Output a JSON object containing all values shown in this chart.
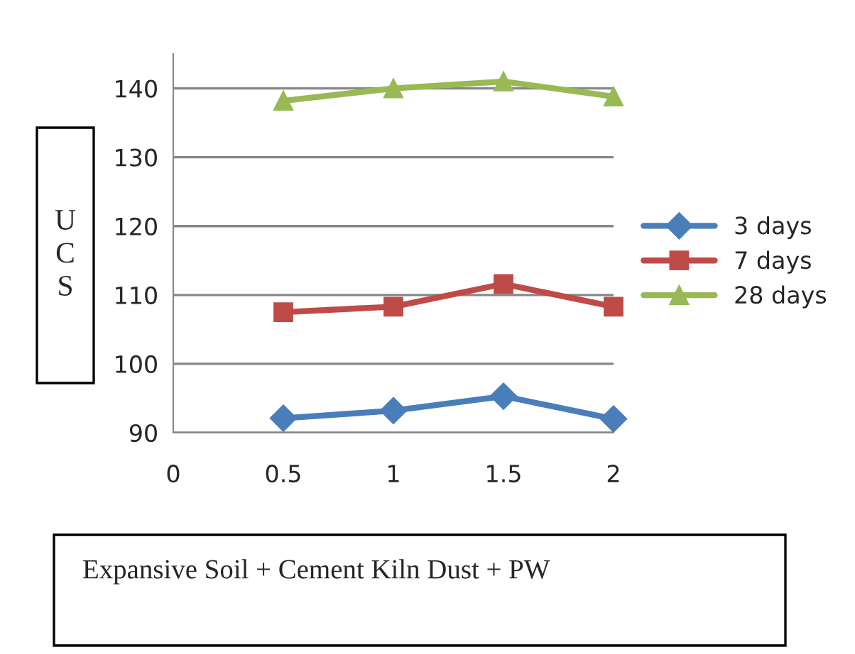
{
  "chart_data": {
    "type": "line",
    "ylabel": "UCS",
    "x": [
      0.5,
      1,
      1.5,
      2
    ],
    "series": [
      {
        "name": "3 days",
        "color": "#4a7ebb",
        "marker": "diamond",
        "values": [
          92.1,
          93.2,
          95.3,
          92.0
        ]
      },
      {
        "name": "7 days",
        "color": "#be4b48",
        "marker": "square",
        "values": [
          107.5,
          108.3,
          111.6,
          108.3
        ]
      },
      {
        "name": "28 days",
        "color": "#98b954",
        "marker": "triangle",
        "values": [
          138.2,
          140.0,
          141.0,
          138.8
        ]
      }
    ],
    "xlim": [
      0,
      2
    ],
    "xticks": [
      0,
      0.5,
      1,
      1.5,
      2
    ],
    "ylim": [
      90,
      145
    ],
    "yticks": [
      90,
      100,
      110,
      120,
      130,
      140
    ],
    "grid": "y",
    "legend": "right",
    "annotations": [
      "Expansive Soil + Cement Kiln Dust + PW"
    ]
  }
}
